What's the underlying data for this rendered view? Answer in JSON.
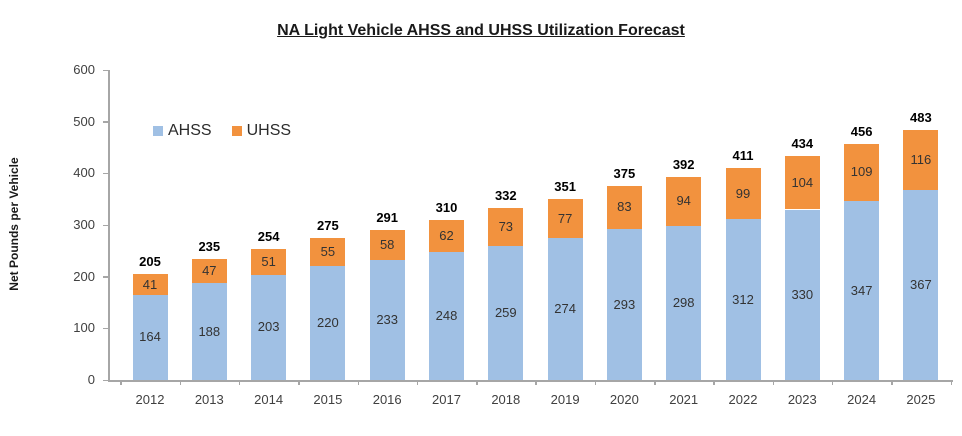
{
  "chart_data": {
    "type": "bar",
    "stacked": true,
    "title": "NA Light Vehicle AHSS and UHSS Utilization Forecast",
    "ylabel": "Net Pounds per Vehicle",
    "xlabel": "",
    "ylim": [
      0,
      600
    ],
    "yticks": [
      0,
      100,
      200,
      300,
      400,
      500,
      600
    ],
    "grid": false,
    "legend_position": "top-left-inside",
    "categories": [
      "2012",
      "2013",
      "2014",
      "2015",
      "2016",
      "2017",
      "2018",
      "2019",
      "2020",
      "2021",
      "2022",
      "2023",
      "2024",
      "2025"
    ],
    "series": [
      {
        "name": "AHSS",
        "color": "#a0c0e4",
        "values": [
          164,
          188,
          203,
          220,
          233,
          248,
          259,
          274,
          293,
          298,
          312,
          330,
          347,
          367
        ]
      },
      {
        "name": "UHSS",
        "color": "#f2923e",
        "values": [
          41,
          47,
          51,
          55,
          58,
          62,
          73,
          77,
          83,
          94,
          99,
          104,
          109,
          116
        ]
      }
    ],
    "totals": [
      205,
      235,
      254,
      275,
      291,
      310,
      332,
      351,
      375,
      392,
      411,
      434,
      456,
      483
    ]
  },
  "colors": {
    "axis": "#a6a6a6",
    "title_text": "#1a1a1a",
    "tick_text": "#404040",
    "segment_label_text": "#333333",
    "total_label_text": "#000000"
  }
}
